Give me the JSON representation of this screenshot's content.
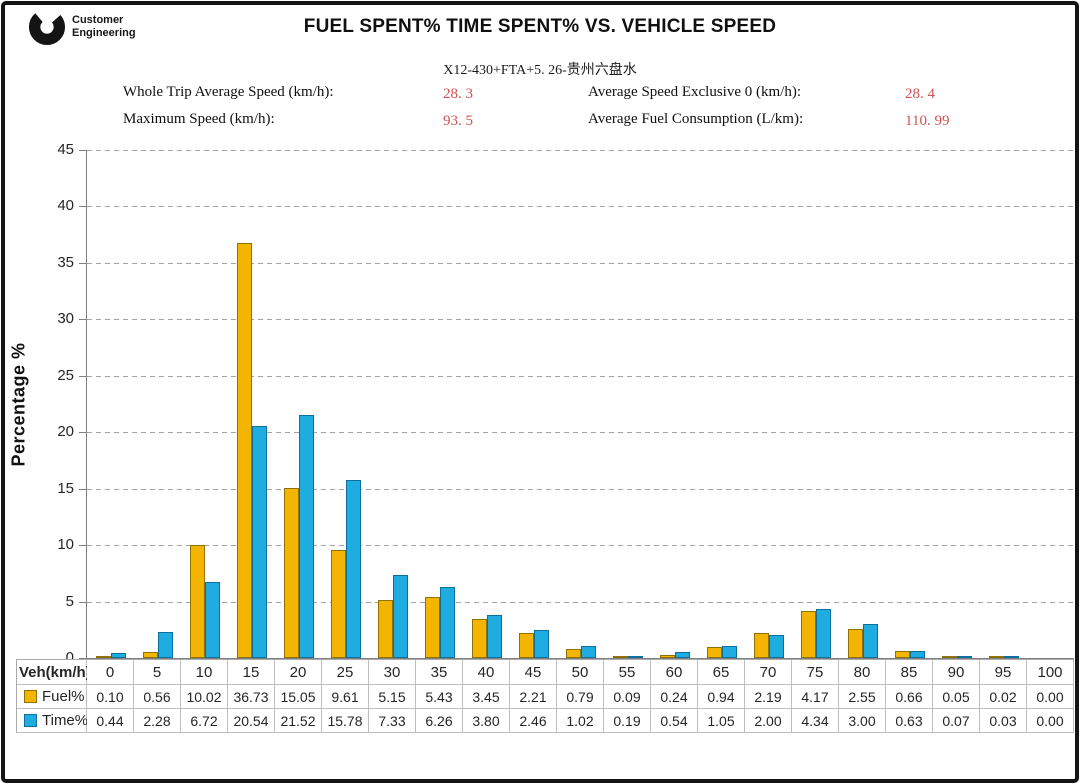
{
  "header": {
    "logo_line1": "Customer",
    "logo_line2": "Engineering",
    "title": "FUEL SPENT% TIME SPENT% VS. VEHICLE SPEED",
    "subtitle": "X12-430+FTA+5. 26-贵州六盘水"
  },
  "stats": [
    {
      "label": "Whole Trip Average Speed (km/h):",
      "value": "28. 3"
    },
    {
      "label": "Average Speed Exclusive 0 (km/h):",
      "value": "28. 4"
    },
    {
      "label": "Maximum Speed (km/h):",
      "value": "93. 5"
    },
    {
      "label": "Average Fuel Consumption (L/km):",
      "value": "110. 99"
    }
  ],
  "colors": {
    "stat_value": "#d05252",
    "fuel_fill": "#f3b500",
    "fuel_border": "#8f7200",
    "time_fill": "#1face0",
    "time_border": "#0e6e9e",
    "gridline": "#a3a3a3",
    "axis": "#7f7f7f"
  },
  "chart_data": {
    "type": "bar",
    "title": "FUEL SPENT% TIME SPENT% VS. VEHICLE SPEED",
    "xlabel": "Veh(km/h)",
    "ylabel": "Percentage %",
    "ylim": [
      0,
      45
    ],
    "ytick_step": 5,
    "grid": true,
    "legend_position": "table-row-headers",
    "categories": [
      "0",
      "5",
      "10",
      "15",
      "20",
      "25",
      "30",
      "35",
      "40",
      "45",
      "50",
      "55",
      "60",
      "65",
      "70",
      "75",
      "80",
      "85",
      "90",
      "95",
      "100"
    ],
    "series": [
      {
        "name": "Fuel%",
        "color": "#f3b500",
        "border": "#8f7200",
        "values": [
          0.1,
          0.56,
          10.02,
          36.73,
          15.05,
          9.61,
          5.15,
          5.43,
          3.45,
          2.21,
          0.79,
          0.09,
          0.24,
          0.94,
          2.19,
          4.17,
          2.55,
          0.66,
          0.05,
          0.02,
          0.0
        ]
      },
      {
        "name": "Time%",
        "color": "#1face0",
        "border": "#0e6e9e",
        "values": [
          0.44,
          2.28,
          6.72,
          20.54,
          21.52,
          15.78,
          7.33,
          6.26,
          3.8,
          2.46,
          1.02,
          0.19,
          0.54,
          1.05,
          2.0,
          4.34,
          3.0,
          0.63,
          0.07,
          0.03,
          0.0
        ]
      }
    ]
  }
}
